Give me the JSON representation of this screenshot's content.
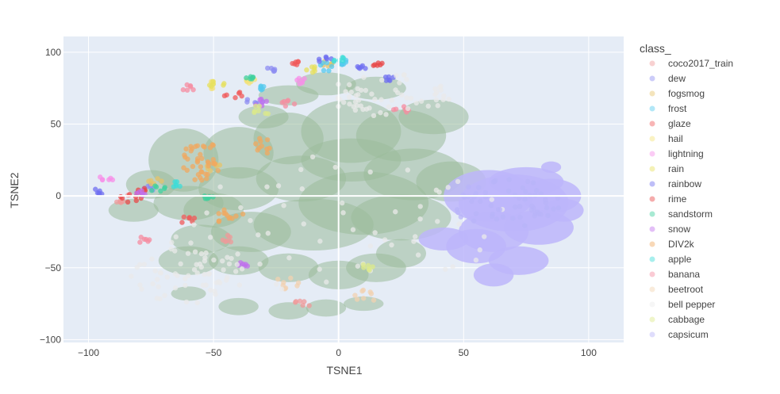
{
  "chart_data": {
    "type": "scatter",
    "title": "",
    "xlabel": "TSNE1",
    "ylabel": "TSNE2",
    "xlim": [
      -110,
      114
    ],
    "ylim": [
      -102,
      111
    ],
    "x_ticks": [
      -100,
      -50,
      0,
      50,
      100
    ],
    "y_ticks": [
      -100,
      -50,
      0,
      50,
      100
    ],
    "x_tick_labels": [
      "−100",
      "−50",
      "0",
      "50",
      "100"
    ],
    "y_tick_labels": [
      "−100",
      "−50",
      "0",
      "50",
      "100"
    ],
    "grid": true,
    "zero_lines": true,
    "legend_position": "right",
    "legend_title": "class_",
    "series": [
      {
        "name": "coco2017_train",
        "color": "#EF9A9A",
        "regions": [
          [
            -86,
            -2,
            4,
            3
          ],
          [
            -45,
            -30,
            3,
            3
          ],
          [
            -15,
            -75,
            4,
            3
          ]
        ]
      },
      {
        "name": "dew",
        "color": "#8E8EF2",
        "regions": [
          [
            -33,
            66,
            4,
            3
          ],
          [
            -25,
            88,
            4,
            2
          ],
          [
            -75,
            6,
            3,
            3
          ]
        ]
      },
      {
        "name": "fogsmog",
        "color": "#E6C36B",
        "regions": [
          [
            -73,
            10,
            3,
            3
          ],
          [
            -5,
            92,
            3,
            2
          ],
          [
            -50,
            20,
            3,
            3
          ]
        ]
      },
      {
        "name": "frost",
        "color": "#55C9EE",
        "regions": [
          [
            -5,
            90,
            4,
            3
          ],
          [
            3,
            93,
            3,
            2
          ],
          [
            -30,
            75,
            3,
            2
          ]
        ]
      },
      {
        "name": "glaze",
        "color": "#F05A5A",
        "regions": [
          [
            -42,
            70,
            4,
            3
          ],
          [
            -17,
            93,
            3,
            2
          ],
          [
            -60,
            -17,
            3,
            3
          ]
        ]
      },
      {
        "name": "hail",
        "color": "#F3E27A",
        "regions": [
          [
            -50,
            77,
            3,
            3
          ],
          [
            -35,
            80,
            3,
            2
          ]
        ]
      },
      {
        "name": "lightning",
        "color": "#F78FE8",
        "regions": [
          [
            -93,
            12,
            3,
            2
          ],
          [
            -15,
            80,
            3,
            2
          ]
        ]
      },
      {
        "name": "rain",
        "color": "#E6E05E",
        "regions": [
          [
            -49,
            78,
            4,
            2
          ],
          [
            -10,
            88,
            3,
            2
          ]
        ]
      },
      {
        "name": "rainbow",
        "color": "#6F6FF0",
        "regions": [
          [
            -96,
            3,
            3,
            2
          ],
          [
            -5,
            95,
            4,
            2
          ],
          [
            10,
            90,
            3,
            2
          ],
          [
            20,
            82,
            2,
            2
          ]
        ]
      },
      {
        "name": "rime",
        "color": "#E84848",
        "regions": [
          [
            -83,
            -1,
            5,
            4
          ],
          [
            -80,
            4,
            3,
            2
          ],
          [
            15,
            92,
            3,
            2
          ]
        ]
      },
      {
        "name": "sandstorm",
        "color": "#3FD09E",
        "regions": [
          [
            -72,
            6,
            4,
            3
          ],
          [
            -52,
            -1,
            2,
            2
          ],
          [
            -35,
            82,
            2,
            2
          ]
        ]
      },
      {
        "name": "snow",
        "color": "#C070EE",
        "regions": [
          [
            -32,
            65,
            4,
            3
          ],
          [
            -79,
            1,
            3,
            3
          ],
          [
            -38,
            -48,
            2,
            2
          ]
        ]
      },
      {
        "name": "DIV2k",
        "color": "#F0A860",
        "regions": [
          [
            -55,
            25,
            8,
            15
          ],
          [
            -43,
            -15,
            6,
            6
          ],
          [
            -30,
            35,
            5,
            6
          ]
        ]
      },
      {
        "name": "apple",
        "color": "#3DDCD8",
        "regions": [
          [
            0,
            95,
            3,
            2
          ],
          [
            -65,
            8,
            2,
            2
          ]
        ]
      },
      {
        "name": "banana",
        "color": "#F58CA0",
        "regions": [
          [
            -60,
            75,
            4,
            3
          ],
          [
            -20,
            65,
            3,
            3
          ],
          [
            25,
            60,
            3,
            3
          ],
          [
            -78,
            -30,
            3,
            3
          ]
        ]
      },
      {
        "name": "beetroot",
        "color": "#F2D2B0",
        "regions": [
          [
            -20,
            -60,
            5,
            5
          ],
          [
            10,
            -70,
            5,
            5
          ]
        ]
      },
      {
        "name": "bell pepper",
        "color": "#EAEAEA",
        "regions": [
          [
            0,
            -20,
            70,
            52
          ],
          [
            -60,
            -55,
            25,
            20
          ],
          [
            20,
            70,
            25,
            15
          ]
        ]
      },
      {
        "name": "cabbage",
        "color": "#DCE98A",
        "regions": [
          [
            -30,
            60,
            5,
            4
          ],
          [
            10,
            -50,
            4,
            4
          ]
        ]
      },
      {
        "name": "capsicum",
        "color": "#B8B4F8",
        "regions": [
          [
            67,
            -5,
            22,
            18
          ]
        ]
      }
    ],
    "dominant_clusters": {
      "green_color": "#9ABB9A",
      "purple_color": "#BDB6FA"
    }
  }
}
